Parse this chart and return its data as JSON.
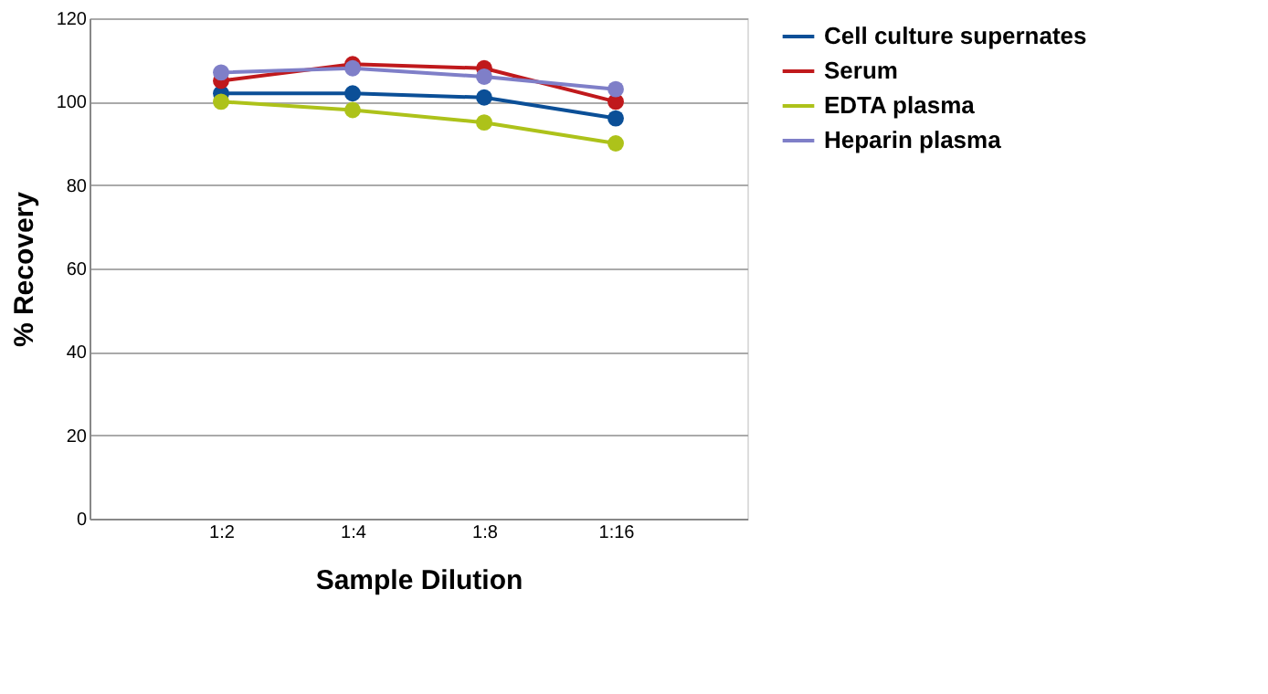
{
  "chart_data": {
    "type": "line",
    "xlabel": "Sample Dilution",
    "ylabel": "% Recovery",
    "categories": [
      "1:2",
      "1:4",
      "1:8",
      "1:16"
    ],
    "series": [
      {
        "name": "Cell culture supernates",
        "color": "#0b4f97",
        "values": [
          102,
          102,
          101,
          96
        ]
      },
      {
        "name": "Serum",
        "color": "#c0191c",
        "values": [
          105,
          109,
          108,
          100
        ]
      },
      {
        "name": "EDTA plasma",
        "color": "#adc21a",
        "values": [
          100,
          98,
          95,
          90
        ]
      },
      {
        "name": "Heparin plasma",
        "color": "#7f7fc8",
        "values": [
          107,
          108,
          106,
          103
        ]
      }
    ],
    "ylim": [
      0,
      120
    ],
    "yticks": [
      0,
      20,
      40,
      60,
      80,
      100,
      120
    ],
    "grid": "y",
    "legend": "right",
    "marker": "circle",
    "line_style": "solid"
  }
}
